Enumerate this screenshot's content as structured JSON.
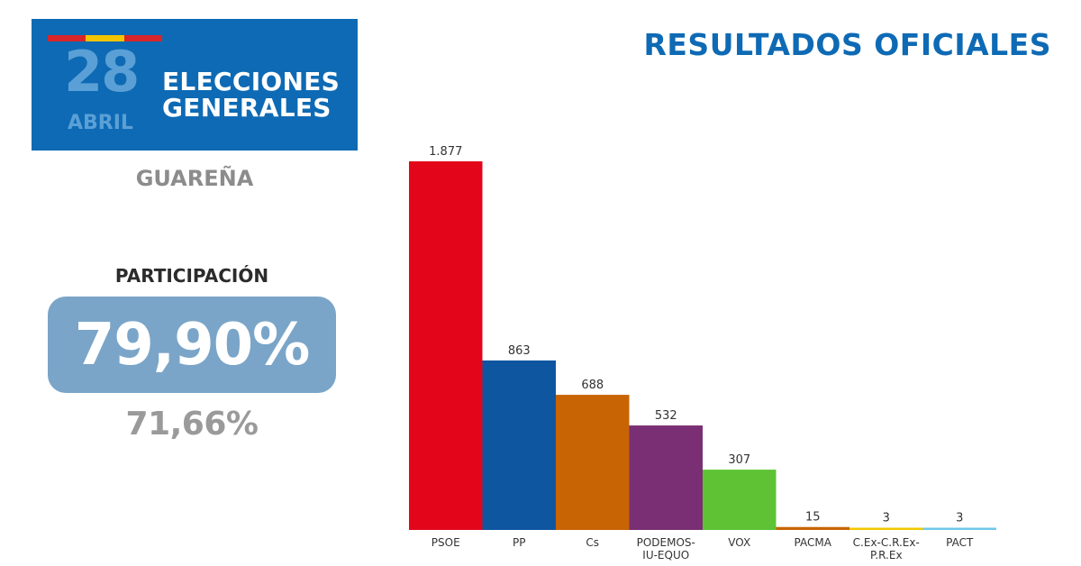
{
  "badge": {
    "day": "28",
    "month": "ABRIL",
    "title_line1": "ELECCIONES",
    "title_line2": "GENERALES",
    "flag_colors": [
      "#d8262b",
      "#f5c400",
      "#d8262b"
    ]
  },
  "headline": "RESULTADOS OFICIALES",
  "place": "GUAREÑA",
  "participation": {
    "label": "PARTICIPACIÓN",
    "value": "79,90%",
    "previous_value": "71,66%"
  },
  "colors": {
    "brand_blue": "#0e6ab4",
    "participation_box": "#7aa5c8"
  },
  "chart_data": {
    "type": "bar",
    "categories": [
      "PSOE",
      "PP",
      "Cs",
      "PODEMOS-IU-EQUO",
      "VOX",
      "PACMA",
      "C.Ex-C.R.Ex-P.R.Ex",
      "PACT"
    ],
    "category_lines": [
      [
        "PSOE"
      ],
      [
        "PP"
      ],
      [
        "Cs"
      ],
      [
        "PODEMOS-",
        "IU-EQUO"
      ],
      [
        "VOX"
      ],
      [
        "PACMA"
      ],
      [
        "C.Ex-C.R.Ex-",
        "P.R.Ex"
      ],
      [
        "PACT"
      ]
    ],
    "values": [
      1877,
      863,
      688,
      532,
      307,
      15,
      3,
      3
    ],
    "value_labels": [
      "1.877",
      "863",
      "688",
      "532",
      "307",
      "15",
      "3",
      "3"
    ],
    "colors": [
      "#e3061b",
      "#0f56a0",
      "#c86404",
      "#7a2f74",
      "#5ec234",
      "#c86404",
      "#f0c800",
      "#6fc7e8"
    ],
    "ylim": [
      0,
      1877
    ],
    "grid": false,
    "legend": "none"
  }
}
